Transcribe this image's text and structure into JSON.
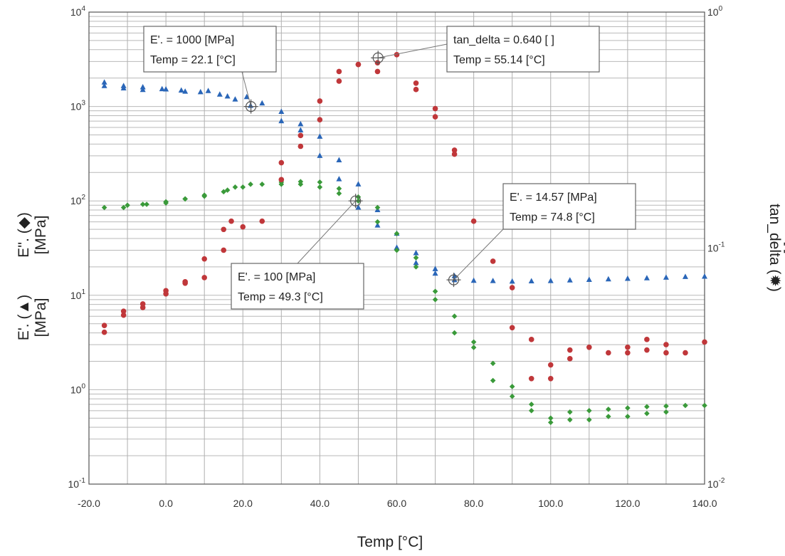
{
  "chart_data": {
    "type": "scatter",
    "xlabel": "Temp [°C]",
    "x_ticks": [
      "-20.0",
      "0.0",
      "20.0",
      "40.0",
      "60.0",
      "80.0",
      "100.0",
      "120.0",
      "140.0"
    ],
    "xlim": [
      -20,
      140
    ],
    "ylim_left": [
      0.1,
      10000
    ],
    "ylim_right": [
      0.01,
      1
    ],
    "y_scale": "log",
    "grid": true,
    "left_y_ticks": [
      {
        "base": "10",
        "exp": "4"
      },
      {
        "base": "10",
        "exp": "3"
      },
      {
        "base": "10",
        "exp": "2"
      },
      {
        "base": "10",
        "exp": "1"
      },
      {
        "base": "10",
        "exp": "0"
      },
      {
        "base": "10",
        "exp": "-1"
      }
    ],
    "right_y_ticks": [
      {
        "base": "10",
        "exp": "0"
      },
      {
        "base": "10",
        "exp": "-1"
      },
      {
        "base": "10",
        "exp": "-2"
      }
    ],
    "left_axis_labels": [
      {
        "line1": "E''. (◆)",
        "line2": "[MPa]",
        "color": "#3a9a3a"
      },
      {
        "line1": "E'. (▲)",
        "line2": "[MPa]",
        "color": "#2a66b8"
      }
    ],
    "right_axis_label": {
      "line1": "tan_delta (✹)",
      "line2": "[ ]",
      "color": "#c0373a"
    },
    "series": [
      {
        "marker": "triangle",
        "axis": "left",
        "color": "#2a66b8",
        "x": [
          -16,
          -16,
          -11,
          -11,
          -6,
          -6,
          -1,
          0,
          4,
          5,
          9,
          11,
          14,
          16,
          18,
          21,
          22,
          25,
          30,
          30,
          35,
          35,
          40,
          40,
          45,
          45,
          50,
          50,
          55,
          55,
          60,
          60,
          65,
          65,
          70,
          70,
          75,
          75,
          80,
          85,
          90,
          95,
          100,
          105,
          110,
          115,
          120,
          125,
          130,
          135,
          140
        ],
        "y": [
          1800,
          1650,
          1650,
          1560,
          1600,
          1500,
          1530,
          1520,
          1480,
          1440,
          1420,
          1460,
          1340,
          1280,
          1190,
          1260,
          1020,
          1080,
          880,
          700,
          650,
          560,
          480,
          300,
          270,
          170,
          150,
          85,
          80,
          55,
          45,
          32,
          28,
          22,
          19,
          17,
          16,
          14.5,
          14.3,
          14.2,
          14,
          14.1,
          14.2,
          14.4,
          14.6,
          14.8,
          15,
          15.2,
          15.4,
          15.7,
          15.8
        ]
      },
      {
        "marker": "diamond",
        "axis": "left",
        "color": "#3a9a3a",
        "x": [
          -16,
          -11,
          -10,
          -6,
          -5,
          0,
          0,
          5,
          5,
          10,
          10,
          15,
          16,
          18,
          20,
          22,
          25,
          30,
          30,
          35,
          35,
          40,
          40,
          45,
          45,
          50,
          50,
          55,
          55,
          60,
          60,
          65,
          65,
          70,
          70,
          75,
          75,
          80,
          80,
          85,
          85,
          90,
          90,
          95,
          95,
          100,
          100,
          105,
          105,
          110,
          110,
          115,
          115,
          120,
          120,
          125,
          125,
          130,
          130,
          135,
          140
        ],
        "y": [
          85,
          85,
          90,
          92,
          92,
          98,
          95,
          105,
          105,
          115,
          112,
          125,
          130,
          140,
          140,
          150,
          150,
          158,
          150,
          160,
          150,
          158,
          140,
          135,
          120,
          110,
          100,
          85,
          60,
          45,
          30,
          25,
          20,
          11,
          9,
          6,
          4,
          3.2,
          2.8,
          1.9,
          1.25,
          1.08,
          0.85,
          0.7,
          0.6,
          0.5,
          0.45,
          0.58,
          0.48,
          0.6,
          0.48,
          0.62,
          0.52,
          0.64,
          0.52,
          0.66,
          0.56,
          0.67,
          0.58,
          0.68,
          0.68
        ]
      },
      {
        "marker": "star",
        "axis": "right",
        "color": "#c0373a",
        "x": [
          -16,
          -16,
          -11,
          -11,
          -6,
          -6,
          0,
          0,
          5,
          5,
          10,
          10,
          15,
          15,
          17,
          20,
          25,
          30,
          30,
          35,
          35,
          40,
          40,
          45,
          45,
          50,
          50,
          55,
          55,
          60,
          65,
          65,
          70,
          70,
          75,
          75,
          80,
          85,
          90,
          90,
          95,
          95,
          100,
          100,
          105,
          105,
          110,
          115,
          120,
          120,
          125,
          125,
          130,
          130,
          135,
          140
        ],
        "y": [
          0.047,
          0.044,
          0.052,
          0.054,
          0.058,
          0.056,
          0.064,
          0.066,
          0.071,
          0.072,
          0.075,
          0.09,
          0.098,
          0.12,
          0.13,
          0.123,
          0.13,
          0.195,
          0.23,
          0.27,
          0.3,
          0.35,
          0.42,
          0.51,
          0.56,
          0.6,
          0.6,
          0.61,
          0.56,
          0.66,
          0.5,
          0.47,
          0.39,
          0.36,
          0.26,
          0.25,
          0.13,
          0.088,
          0.068,
          0.046,
          0.041,
          0.028,
          0.032,
          0.028,
          0.034,
          0.037,
          0.038,
          0.036,
          0.038,
          0.036,
          0.037,
          0.041,
          0.039,
          0.036,
          0.036,
          0.04
        ]
      }
    ],
    "annotations": [
      {
        "line1": "E'. = 1000 [MPa]",
        "line2": "Temp = 22.1 [°C]",
        "x": 22.1,
        "y": 1000,
        "axis": "left"
      },
      {
        "line1": "tan_delta = 0.640 [ ]",
        "line2": "Temp = 55.14 [°C]",
        "x": 55.14,
        "y": 0.64,
        "axis": "right"
      },
      {
        "line1": "E'. = 100 [MPa]",
        "line2": "Temp = 49.3 [°C]",
        "x": 49.3,
        "y": 100,
        "axis": "left"
      },
      {
        "line1": "E'. = 14.57 [MPa]",
        "line2": "Temp = 74.8 [°C]",
        "x": 74.8,
        "y": 14.57,
        "axis": "left"
      }
    ]
  }
}
